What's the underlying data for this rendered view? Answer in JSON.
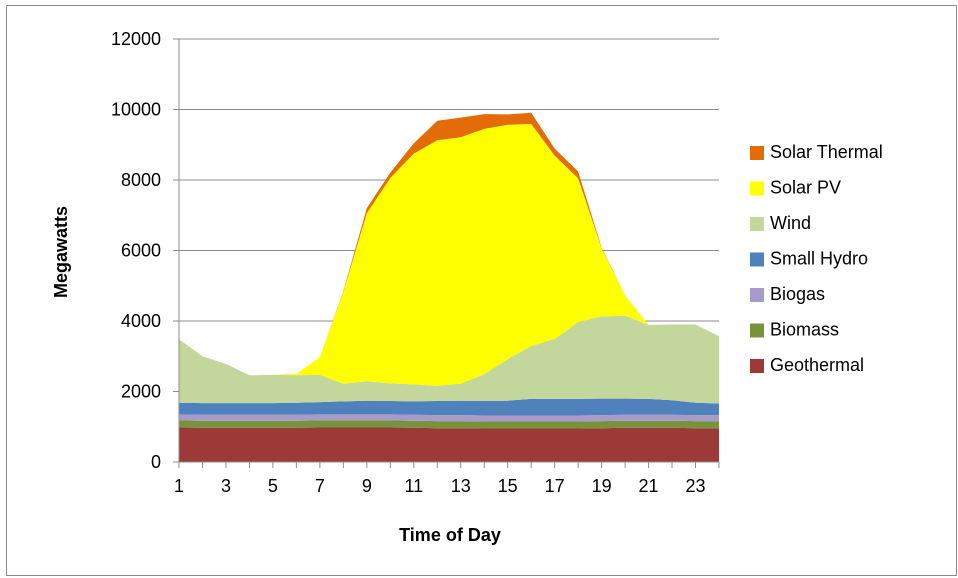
{
  "chart_data": {
    "type": "area",
    "stacked": true,
    "xlabel": "Time of Day",
    "ylabel": "Megawatts",
    "ylim": [
      0,
      12000
    ],
    "yticks": [
      0,
      2000,
      4000,
      6000,
      8000,
      10000,
      12000
    ],
    "xlim": [
      1,
      24
    ],
    "xticks": [
      1,
      3,
      5,
      7,
      9,
      11,
      13,
      15,
      17,
      19,
      21,
      23
    ],
    "grid": "horizontal",
    "legend_position": "right",
    "x": [
      1,
      2,
      3,
      4,
      5,
      6,
      7,
      8,
      9,
      10,
      11,
      12,
      13,
      14,
      15,
      16,
      17,
      18,
      19,
      20,
      21,
      22,
      23,
      24
    ],
    "series": [
      {
        "name": "Geothermal",
        "color": "#9b3a37",
        "values": [
          980,
          970,
          970,
          970,
          970,
          970,
          980,
          980,
          980,
          980,
          970,
          960,
          960,
          950,
          950,
          950,
          950,
          950,
          960,
          970,
          970,
          970,
          960,
          960
        ]
      },
      {
        "name": "Biomass",
        "color": "#77933c",
        "values": [
          200,
          200,
          200,
          200,
          200,
          200,
          200,
          200,
          200,
          200,
          200,
          200,
          200,
          200,
          200,
          200,
          200,
          200,
          200,
          200,
          200,
          200,
          200,
          200
        ]
      },
      {
        "name": "Biogas",
        "color": "#a99bc9",
        "values": [
          170,
          170,
          170,
          170,
          170,
          170,
          170,
          170,
          170,
          170,
          170,
          170,
          170,
          170,
          170,
          170,
          170,
          170,
          170,
          170,
          170,
          170,
          170,
          170
        ]
      },
      {
        "name": "Small Hydro",
        "color": "#4f81bd",
        "values": [
          330,
          330,
          330,
          330,
          330,
          340,
          350,
          370,
          390,
          380,
          380,
          400,
          410,
          420,
          420,
          470,
          470,
          470,
          470,
          460,
          450,
          410,
          350,
          330
        ]
      },
      {
        "name": "Wind",
        "color": "#c3d69b",
        "values": [
          1800,
          1330,
          1110,
          790,
          800,
          780,
          770,
          500,
          550,
          500,
          480,
          430,
          480,
          750,
          1180,
          1500,
          1700,
          2180,
          2330,
          2350,
          2100,
          2150,
          2220,
          1910
        ]
      },
      {
        "name": "Solar PV",
        "color": "#ffff00",
        "values": [
          0,
          0,
          0,
          0,
          0,
          40,
          510,
          2600,
          4770,
          5830,
          6550,
          6970,
          6990,
          6960,
          6650,
          6300,
          5200,
          4080,
          1930,
          570,
          0,
          0,
          0,
          0
        ]
      },
      {
        "name": "Solar Thermal",
        "color": "#e36c09",
        "values": [
          0,
          0,
          0,
          0,
          0,
          0,
          0,
          20,
          140,
          150,
          290,
          550,
          560,
          420,
          290,
          320,
          200,
          190,
          20,
          0,
          0,
          0,
          0,
          0
        ]
      }
    ]
  }
}
